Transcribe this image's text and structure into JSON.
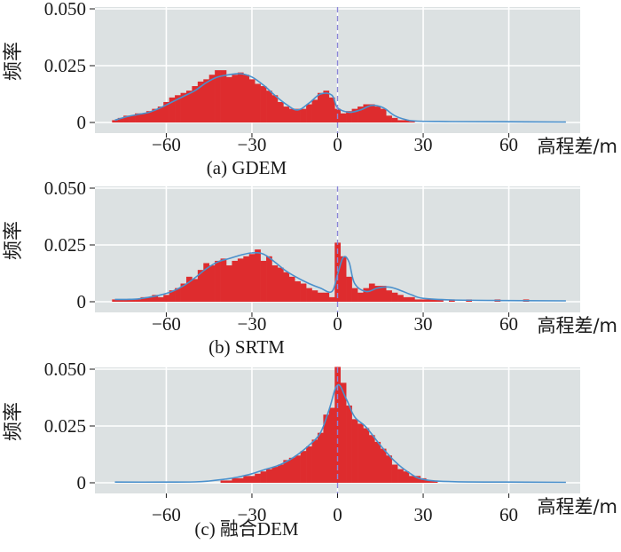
{
  "chart_data": [
    {
      "type": "bar",
      "caption": "(a) GDEM",
      "xlabel": "高程差/m",
      "ylabel": "频率",
      "xlim": [
        -85,
        85
      ],
      "ylim": [
        0,
        0.05
      ],
      "xticks": [
        -60,
        -30,
        0,
        30,
        60
      ],
      "xtick_labels": [
        "−60",
        "−30",
        "0",
        "30",
        "60"
      ],
      "yticks": [
        0,
        0.025,
        0.05
      ],
      "ytick_labels": [
        "0",
        "0.025",
        "0.050"
      ],
      "grid": true,
      "zero_line": true,
      "bin_width": 2,
      "x": [
        -78,
        -76,
        -74,
        -72,
        -70,
        -68,
        -66,
        -64,
        -62,
        -60,
        -58,
        -56,
        -54,
        -52,
        -50,
        -48,
        -46,
        -44,
        -42,
        -40,
        -38,
        -36,
        -34,
        -32,
        -30,
        -28,
        -26,
        -24,
        -22,
        -20,
        -18,
        -16,
        -14,
        -12,
        -10,
        -8,
        -6,
        -4,
        -2,
        0,
        2,
        4,
        6,
        8,
        10,
        12,
        14,
        16,
        18,
        20,
        22,
        24,
        26
      ],
      "values": [
        0.001,
        0.002,
        0.003,
        0.003,
        0.004,
        0.004,
        0.005,
        0.006,
        0.007,
        0.009,
        0.011,
        0.012,
        0.013,
        0.014,
        0.016,
        0.018,
        0.019,
        0.021,
        0.023,
        0.023,
        0.02,
        0.021,
        0.022,
        0.021,
        0.019,
        0.017,
        0.016,
        0.014,
        0.012,
        0.009,
        0.007,
        0.006,
        0.006,
        0.006,
        0.008,
        0.01,
        0.013,
        0.014,
        0.011,
        0.006,
        0.004,
        0.005,
        0.006,
        0.007,
        0.008,
        0.008,
        0.007,
        0.006,
        0.003,
        0.002,
        0.001,
        0.001,
        0.0005
      ],
      "curve_x": [
        -78,
        -74,
        -70,
        -66,
        -62,
        -58,
        -54,
        -50,
        -46,
        -42,
        -38,
        -34,
        -30,
        -26,
        -22,
        -18,
        -14,
        -10,
        -6,
        -2,
        0,
        4,
        8,
        12,
        16,
        20,
        24,
        28,
        40,
        60,
        80
      ],
      "curve_y": [
        0.001,
        0.0025,
        0.0035,
        0.0045,
        0.0065,
        0.009,
        0.0115,
        0.014,
        0.0175,
        0.02,
        0.021,
        0.0215,
        0.02,
        0.0165,
        0.012,
        0.008,
        0.0055,
        0.0085,
        0.0125,
        0.012,
        0.0065,
        0.0045,
        0.0055,
        0.0075,
        0.0065,
        0.003,
        0.0012,
        0.0006,
        0.0004,
        0.0003,
        0.0002
      ]
    },
    {
      "type": "bar",
      "caption": "(b) SRTM",
      "xlabel": "高程差/m",
      "ylabel": "频率",
      "xlim": [
        -85,
        85
      ],
      "ylim": [
        0,
        0.05
      ],
      "xticks": [
        -60,
        -30,
        0,
        30,
        60
      ],
      "xtick_labels": [
        "−60",
        "−30",
        "0",
        "30",
        "60"
      ],
      "yticks": [
        0,
        0.025,
        0.05
      ],
      "ytick_labels": [
        "0",
        "0.025",
        "0.050"
      ],
      "grid": true,
      "zero_line": true,
      "bin_width": 2,
      "x": [
        -78,
        -76,
        -74,
        -72,
        -70,
        -68,
        -66,
        -64,
        -62,
        -60,
        -58,
        -56,
        -54,
        -52,
        -50,
        -48,
        -46,
        -44,
        -42,
        -40,
        -38,
        -36,
        -34,
        -32,
        -30,
        -28,
        -26,
        -24,
        -22,
        -20,
        -18,
        -16,
        -14,
        -12,
        -10,
        -8,
        -6,
        -4,
        -2,
        0,
        2,
        4,
        6,
        8,
        10,
        12,
        14,
        16,
        18,
        20,
        22,
        24,
        26,
        28,
        30,
        32,
        34,
        36,
        40,
        46,
        56,
        66
      ],
      "values": [
        0.001,
        0.001,
        0.001,
        0.001,
        0.001,
        0.002,
        0.002,
        0.003,
        0.002,
        0.003,
        0.005,
        0.006,
        0.008,
        0.011,
        0.01,
        0.014,
        0.017,
        0.016,
        0.018,
        0.019,
        0.016,
        0.018,
        0.019,
        0.02,
        0.021,
        0.023,
        0.018,
        0.02,
        0.016,
        0.015,
        0.013,
        0.011,
        0.009,
        0.008,
        0.006,
        0.005,
        0.004,
        0.004,
        0.002,
        0.026,
        0.02,
        0.011,
        0.006,
        0.004,
        0.006,
        0.008,
        0.007,
        0.007,
        0.005,
        0.004,
        0.003,
        0.002,
        0.002,
        0.001,
        0.001,
        0.001,
        0.001,
        0.001,
        0.001,
        0.001,
        0.001,
        0.001
      ],
      "curve_x": [
        -78,
        -74,
        -70,
        -66,
        -62,
        -58,
        -54,
        -50,
        -46,
        -42,
        -38,
        -34,
        -30,
        -26,
        -22,
        -18,
        -14,
        -10,
        -6,
        -2,
        0,
        2,
        4,
        6,
        10,
        14,
        18,
        22,
        26,
        30,
        40,
        60,
        80
      ],
      "curve_y": [
        0.001,
        0.001,
        0.0012,
        0.002,
        0.003,
        0.0045,
        0.007,
        0.0105,
        0.0145,
        0.0175,
        0.019,
        0.0205,
        0.0215,
        0.021,
        0.0175,
        0.0135,
        0.0105,
        0.008,
        0.006,
        0.0045,
        0.012,
        0.0195,
        0.0175,
        0.008,
        0.0045,
        0.006,
        0.0065,
        0.005,
        0.003,
        0.0015,
        0.0008,
        0.0005,
        0.0004
      ]
    },
    {
      "type": "bar",
      "caption": "(c) 融合DEM",
      "xlabel": "高程差/m",
      "ylabel": "频率",
      "xlim": [
        -85,
        85
      ],
      "ylim": [
        0,
        0.05
      ],
      "xticks": [
        -60,
        -30,
        0,
        30,
        60
      ],
      "xtick_labels": [
        "−60",
        "−30",
        "0",
        "30",
        "60"
      ],
      "yticks": [
        0,
        0.025,
        0.05
      ],
      "ytick_labels": [
        "0",
        "0.025",
        "0.050"
      ],
      "grid": true,
      "zero_line": true,
      "bin_width": 2,
      "x": [
        -40,
        -38,
        -36,
        -34,
        -32,
        -30,
        -28,
        -26,
        -24,
        -22,
        -20,
        -18,
        -16,
        -14,
        -12,
        -10,
        -8,
        -6,
        -4,
        -2,
        0,
        2,
        4,
        6,
        8,
        10,
        12,
        14,
        16,
        18,
        20,
        22,
        24,
        26,
        28,
        30,
        32,
        34
      ],
      "values": [
        0.001,
        0.001,
        0.002,
        0.002,
        0.003,
        0.003,
        0.004,
        0.005,
        0.006,
        0.007,
        0.008,
        0.01,
        0.011,
        0.012,
        0.014,
        0.016,
        0.019,
        0.022,
        0.03,
        0.033,
        0.051,
        0.044,
        0.034,
        0.028,
        0.026,
        0.024,
        0.021,
        0.018,
        0.015,
        0.012,
        0.008,
        0.006,
        0.005,
        0.003,
        0.003,
        0.002,
        0.001,
        0.001
      ],
      "curve_x": [
        -78,
        -60,
        -50,
        -45,
        -40,
        -35,
        -30,
        -25,
        -20,
        -15,
        -10,
        -6,
        -3,
        0,
        3,
        6,
        10,
        15,
        20,
        25,
        30,
        40,
        60,
        80
      ],
      "curve_y": [
        0.0003,
        0.0003,
        0.0004,
        0.0008,
        0.0015,
        0.0025,
        0.004,
        0.006,
        0.008,
        0.0115,
        0.0165,
        0.022,
        0.032,
        0.043,
        0.037,
        0.029,
        0.0245,
        0.0165,
        0.0095,
        0.0045,
        0.0015,
        0.0005,
        0.0003,
        0.0002
      ]
    }
  ],
  "colors": {
    "panel_bg": "#dce1e2",
    "grid": "#ffffff",
    "bar": "#de2c2e",
    "curve": "#4a90cc",
    "zero_line": "#8a85d8",
    "text": "#1a1a1a"
  }
}
